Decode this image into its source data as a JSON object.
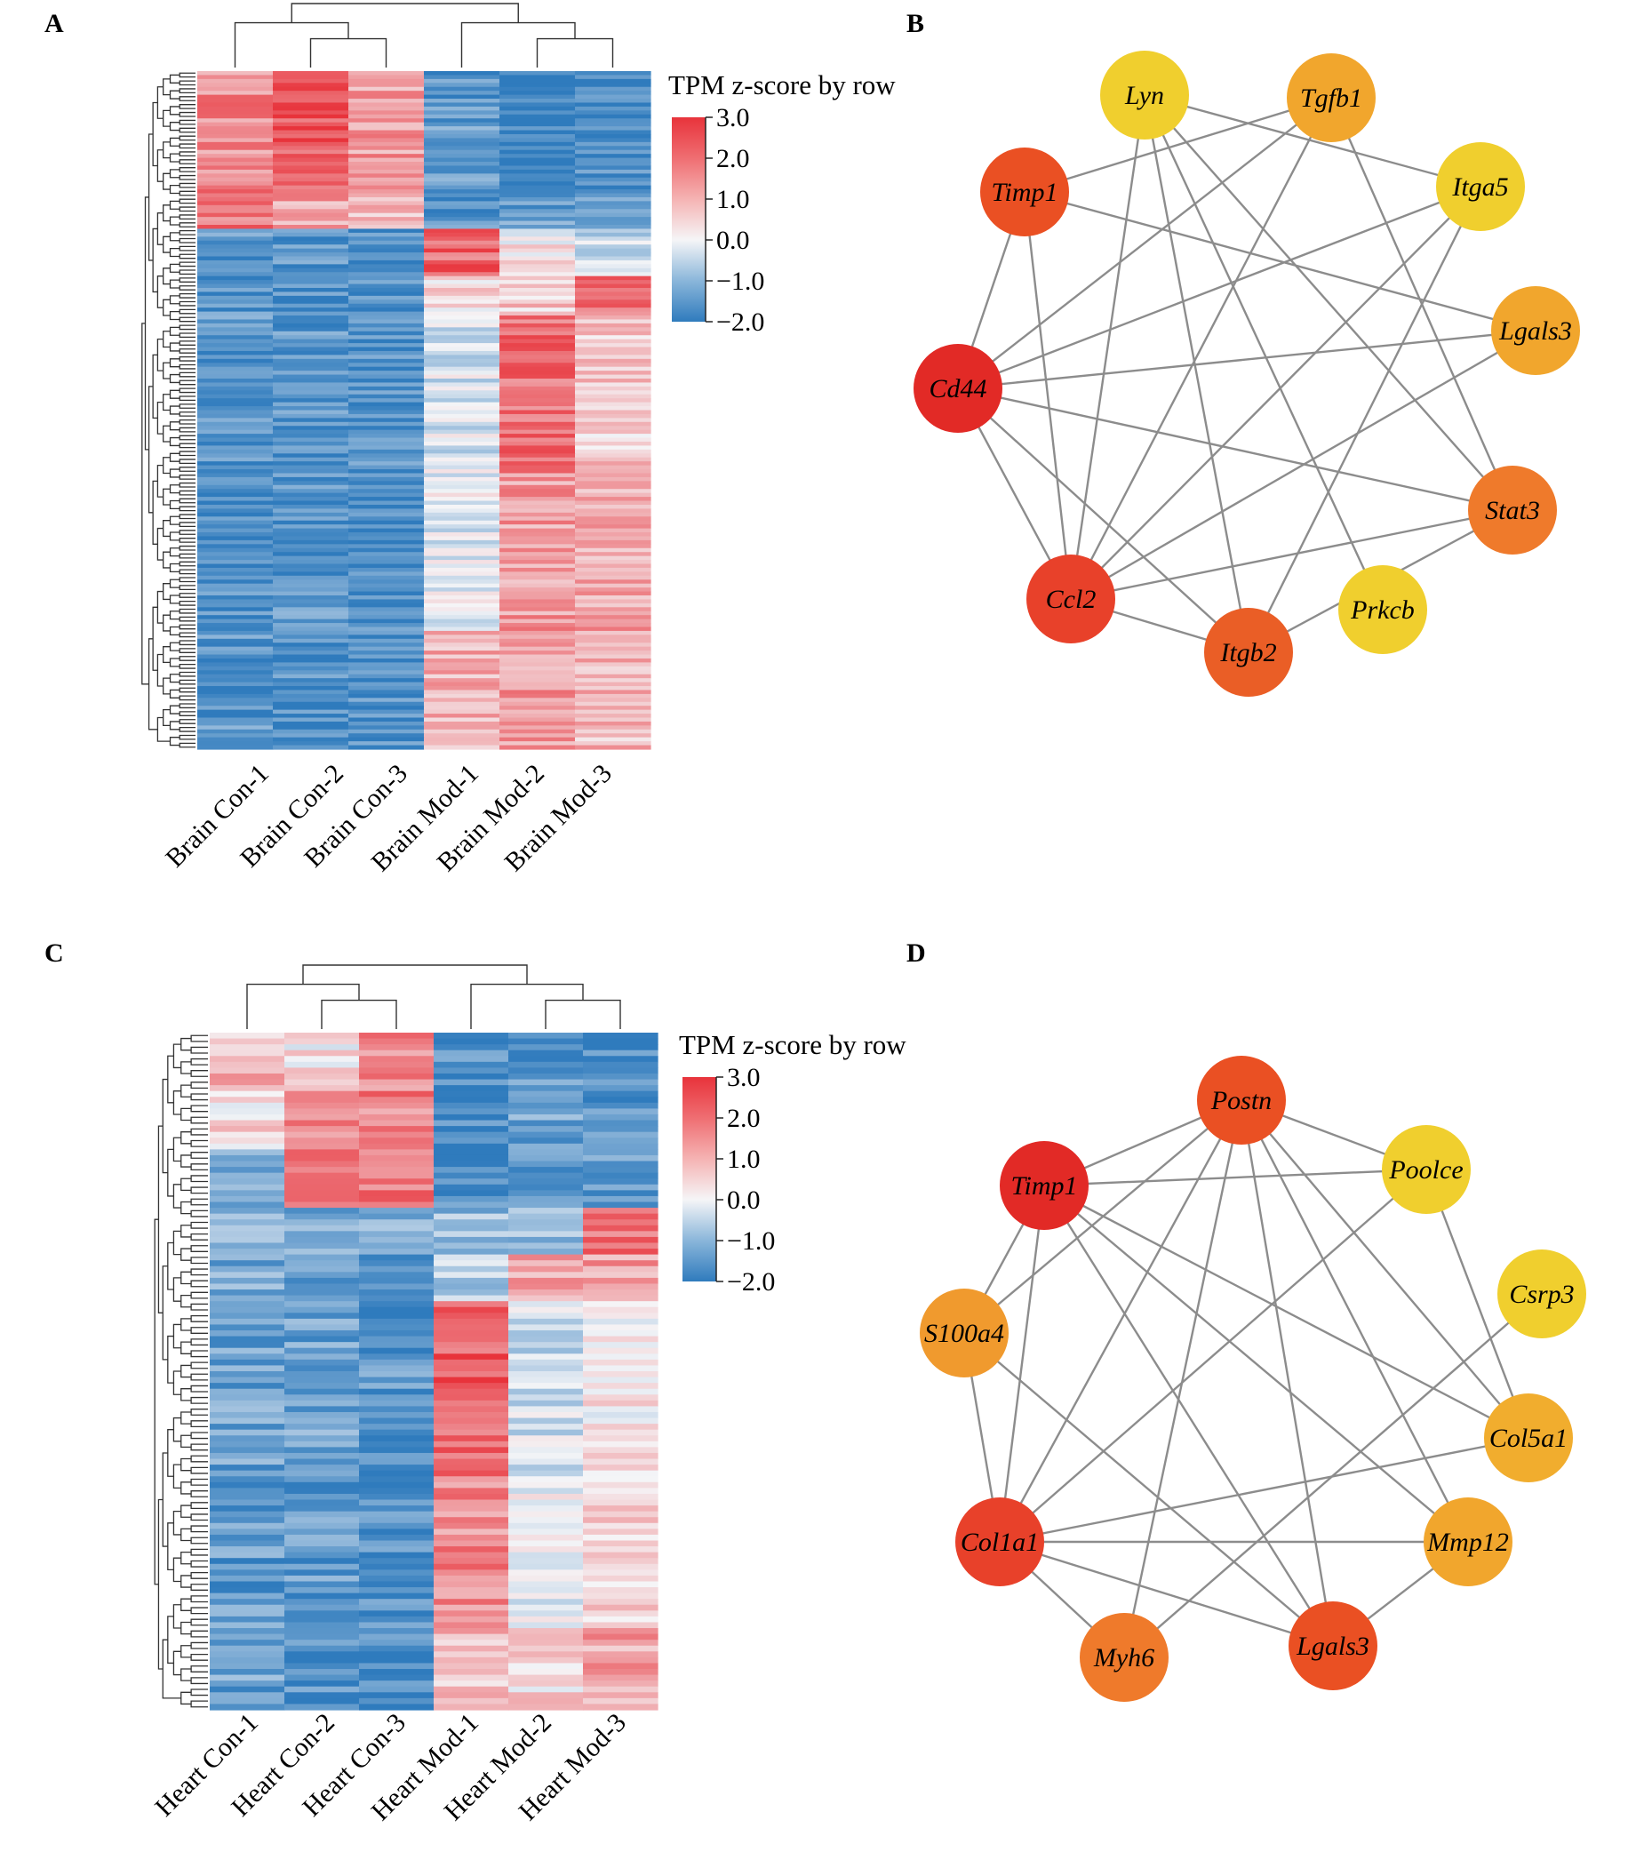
{
  "figure": {
    "panels": {
      "A": {
        "letter": "A"
      },
      "B": {
        "letter": "B"
      },
      "C": {
        "letter": "C"
      },
      "D": {
        "letter": "D"
      }
    }
  },
  "colors": {
    "heat_low": "#2f7bbd",
    "heat_mid": "#f5f5f7",
    "heat_high": "#e8333b",
    "dendrogram": "#333333",
    "network_edge": "#8c8c8c",
    "node_yellow": "#f0cf2e",
    "node_orange_light": "#f1a62d",
    "node_orange": "#ef7a2b",
    "node_red_orange": "#ea5023",
    "node_red": "#e22a26"
  },
  "chart_data": [
    {
      "panel": "A",
      "type": "heatmap",
      "columns": [
        "Brain Con-1",
        "Brain Con-2",
        "Brain Con-3",
        "Brain Mod-1",
        "Brain Mod-2",
        "Brain Mod-3"
      ],
      "legend": {
        "title": "TPM z-score by row",
        "ticks": [
          "3.0",
          "2.0",
          "1.0",
          "0.0",
          "−1.0",
          "−2.0"
        ],
        "range": [
          -2.0,
          3.0
        ]
      },
      "blocks": [
        {
          "rows": 30,
          "values": [
            1.2,
            1.8,
            1.0,
            -1.4,
            -1.9,
            -1.6
          ]
        },
        {
          "rows": 10,
          "values": [
            1.4,
            0.9,
            0.6,
            -1.5,
            -1.4,
            -1.5
          ]
        },
        {
          "rows": 12,
          "values": [
            -1.5,
            -1.5,
            -1.6,
            1.6,
            0.2,
            -0.4
          ]
        },
        {
          "rows": 10,
          "values": [
            -1.5,
            -1.5,
            -1.6,
            0.3,
            0.5,
            1.6
          ]
        },
        {
          "rows": 40,
          "values": [
            -1.5,
            -1.5,
            -1.6,
            -0.3,
            1.5,
            0.5
          ]
        },
        {
          "rows": 40,
          "values": [
            -1.6,
            -1.5,
            -1.6,
            -0.2,
            1.0,
            0.9
          ]
        },
        {
          "rows": 30,
          "values": [
            -1.5,
            -1.6,
            -1.5,
            0.8,
            1.0,
            0.7
          ]
        }
      ],
      "column_dendrogram": "((Brain Con-1,(Brain Con-2,Brain Con-3)),(Brain Mod-1,(Brain Mod-2,Brain Mod-3)))"
    },
    {
      "panel": "B",
      "type": "network",
      "nodes": [
        {
          "id": "Lyn",
          "color": "#f0cf2e"
        },
        {
          "id": "Tgfb1",
          "color": "#f1a62d"
        },
        {
          "id": "Timp1",
          "color": "#ea5023"
        },
        {
          "id": "Itga5",
          "color": "#f0cf2e"
        },
        {
          "id": "Lgals3",
          "color": "#f1a62d"
        },
        {
          "id": "Cd44",
          "color": "#e22a26"
        },
        {
          "id": "Stat3",
          "color": "#ef7a2b"
        },
        {
          "id": "Ccl2",
          "color": "#e8412a"
        },
        {
          "id": "Prkcb",
          "color": "#f0cf2e"
        },
        {
          "id": "Itgb2",
          "color": "#ea5e26"
        }
      ],
      "edges": [
        [
          "Lyn",
          "Itga5"
        ],
        [
          "Lyn",
          "Ccl2"
        ],
        [
          "Lyn",
          "Itgb2"
        ],
        [
          "Lyn",
          "Prkcb"
        ],
        [
          "Lyn",
          "Stat3"
        ],
        [
          "Tgfb1",
          "Timp1"
        ],
        [
          "Tgfb1",
          "Cd44"
        ],
        [
          "Tgfb1",
          "Stat3"
        ],
        [
          "Tgfb1",
          "Ccl2"
        ],
        [
          "Timp1",
          "Lgals3"
        ],
        [
          "Timp1",
          "Cd44"
        ],
        [
          "Timp1",
          "Ccl2"
        ],
        [
          "Itga5",
          "Cd44"
        ],
        [
          "Itga5",
          "Itgb2"
        ],
        [
          "Itga5",
          "Ccl2"
        ],
        [
          "Lgals3",
          "Cd44"
        ],
        [
          "Lgals3",
          "Ccl2"
        ],
        [
          "Cd44",
          "Stat3"
        ],
        [
          "Cd44",
          "Ccl2"
        ],
        [
          "Cd44",
          "Itgb2"
        ],
        [
          "Stat3",
          "Ccl2"
        ],
        [
          "Stat3",
          "Itgb2"
        ],
        [
          "Ccl2",
          "Itgb2"
        ]
      ]
    },
    {
      "panel": "C",
      "type": "heatmap",
      "columns": [
        "Heart Con-1",
        "Heart Con-2",
        "Heart Con-3",
        "Heart Mod-1",
        "Heart Mod-2",
        "Heart Mod-3"
      ],
      "legend": {
        "title": "TPM z-score by row",
        "ticks": [
          "3.0",
          "2.0",
          "1.0",
          "0.0",
          "−1.0",
          "−2.0"
        ],
        "range": [
          -2.0,
          3.0
        ]
      },
      "blocks": [
        {
          "rows": 10,
          "values": [
            0.7,
            0.2,
            1.2,
            -1.6,
            -1.4,
            -1.7
          ]
        },
        {
          "rows": 10,
          "values": [
            0.3,
            1.2,
            1.3,
            -1.6,
            -1.3,
            -1.6
          ]
        },
        {
          "rows": 10,
          "values": [
            -1.0,
            1.2,
            1.5,
            -1.6,
            -1.4,
            -1.4
          ]
        },
        {
          "rows": 8,
          "values": [
            -0.9,
            -1.2,
            -1.2,
            -0.9,
            -1.0,
            1.6
          ]
        },
        {
          "rows": 8,
          "values": [
            -1.2,
            -1.3,
            -1.4,
            -0.6,
            1.0,
            1.0
          ]
        },
        {
          "rows": 30,
          "values": [
            -1.3,
            -1.3,
            -1.5,
            1.7,
            -0.4,
            0.2
          ]
        },
        {
          "rows": 26,
          "values": [
            -1.4,
            -1.4,
            -1.6,
            1.2,
            -0.1,
            0.5
          ]
        },
        {
          "rows": 14,
          "values": [
            -1.3,
            -1.6,
            -1.7,
            0.6,
            0.3,
            0.9
          ]
        }
      ],
      "column_dendrogram": "((Heart Con-1,(Heart Con-2,Heart Con-3)),(Heart Mod-1,(Heart Mod-2,Heart Mod-3)))"
    },
    {
      "panel": "D",
      "type": "network",
      "nodes": [
        {
          "id": "Postn",
          "color": "#ea5023"
        },
        {
          "id": "Timp1",
          "color": "#e22a26"
        },
        {
          "id": "Poolce",
          "color": "#f0cf2e"
        },
        {
          "id": "Csrp3",
          "color": "#f0cf2e"
        },
        {
          "id": "S100a4",
          "color": "#f09a2e"
        },
        {
          "id": "Col5a1",
          "color": "#f1ad2e"
        },
        {
          "id": "Col1a1",
          "color": "#e8412a"
        },
        {
          "id": "Mmp12",
          "color": "#f1a62d"
        },
        {
          "id": "Myh6",
          "color": "#ef7a2b"
        },
        {
          "id": "Lgals3",
          "color": "#ea5023"
        }
      ],
      "edges": [
        [
          "Postn",
          "Timp1"
        ],
        [
          "Postn",
          "Poolce"
        ],
        [
          "Postn",
          "S100a4"
        ],
        [
          "Postn",
          "Col1a1"
        ],
        [
          "Postn",
          "Col5a1"
        ],
        [
          "Postn",
          "Mmp12"
        ],
        [
          "Postn",
          "Myh6"
        ],
        [
          "Postn",
          "Lgals3"
        ],
        [
          "Timp1",
          "Poolce"
        ],
        [
          "Timp1",
          "S100a4"
        ],
        [
          "Timp1",
          "Col1a1"
        ],
        [
          "Timp1",
          "Col5a1"
        ],
        [
          "Timp1",
          "Mmp12"
        ],
        [
          "Timp1",
          "Lgals3"
        ],
        [
          "Poolce",
          "Col5a1"
        ],
        [
          "Poolce",
          "Col1a1"
        ],
        [
          "Csrp3",
          "Myh6"
        ],
        [
          "S100a4",
          "Col1a1"
        ],
        [
          "S100a4",
          "Lgals3"
        ],
        [
          "Col5a1",
          "Col1a1"
        ],
        [
          "Col1a1",
          "Mmp12"
        ],
        [
          "Col1a1",
          "Myh6"
        ],
        [
          "Col1a1",
          "Lgals3"
        ],
        [
          "Mmp12",
          "Lgals3"
        ]
      ]
    }
  ]
}
